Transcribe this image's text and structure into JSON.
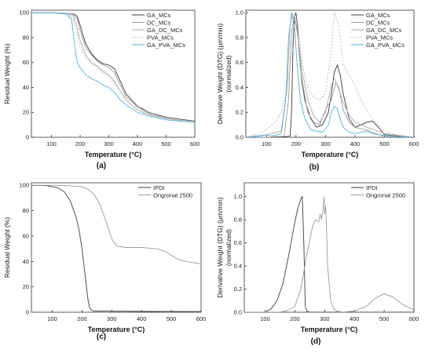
{
  "chart_data": [
    {
      "type": "line",
      "panel_label": "(a)",
      "xlabel": "Temperature (°C)",
      "ylabel": "Residual Weight (%)",
      "xlim": [
        30,
        600
      ],
      "ylim": [
        0,
        102
      ],
      "xticks": [
        100,
        200,
        300,
        400,
        500,
        600
      ],
      "yticks": [
        0,
        20,
        40,
        60,
        80,
        100
      ],
      "legend_position": "top-right",
      "series": [
        {
          "name": "GA_MCs",
          "color": "#3c3c3c",
          "dash": "",
          "x": [
            30,
            100,
            150,
            180,
            190,
            200,
            210,
            220,
            240,
            260,
            280,
            300,
            320,
            340,
            360,
            400,
            440,
            500,
            600
          ],
          "y": [
            100,
            100,
            99.5,
            99,
            97,
            90,
            82,
            75,
            67,
            62,
            59,
            58,
            55,
            45,
            35,
            25,
            20,
            16,
            13
          ]
        },
        {
          "name": "DC_MCs",
          "color": "#9a9a9a",
          "dash": "",
          "x": [
            30,
            100,
            150,
            175,
            190,
            200,
            210,
            220,
            240,
            260,
            280,
            300,
            320,
            340,
            360,
            400,
            440,
            500,
            600
          ],
          "y": [
            100,
            100,
            99.5,
            99,
            95,
            86,
            79,
            72,
            66,
            61,
            58,
            56,
            52,
            42,
            33,
            24,
            19,
            15,
            12
          ]
        },
        {
          "name": "GA_DC_MCs",
          "color": "#aaaaaa",
          "dash": "",
          "x": [
            30,
            100,
            150,
            175,
            185,
            200,
            210,
            220,
            240,
            260,
            280,
            300,
            320,
            340,
            360,
            400,
            440,
            500,
            600
          ],
          "y": [
            100,
            100,
            99.5,
            98,
            92,
            78,
            72,
            66,
            60,
            57,
            53,
            50,
            45,
            37,
            30,
            22,
            18,
            15,
            12
          ]
        },
        {
          "name": "PVA_MCs",
          "color": "#b8b8b8",
          "dash": "2,2",
          "x": [
            30,
            100,
            150,
            170,
            180,
            190,
            200,
            210,
            220,
            240,
            260,
            280,
            300,
            320,
            340,
            380,
            420,
            500,
            600
          ],
          "y": [
            100,
            100,
            99,
            97,
            92,
            84,
            74,
            68,
            64,
            59,
            56,
            52,
            48,
            43,
            37,
            28,
            22,
            15,
            12
          ]
        },
        {
          "name": "GA_PVA_MCs",
          "color": "#5aaed6",
          "dash": "",
          "x": [
            30,
            100,
            150,
            170,
            180,
            190,
            200,
            210,
            220,
            240,
            260,
            280,
            300,
            320,
            340,
            360,
            400,
            440,
            500,
            600
          ],
          "y": [
            100,
            100,
            99,
            95,
            75,
            60,
            56,
            53,
            50,
            47,
            45,
            42,
            40,
            36,
            30,
            26,
            20,
            17,
            14,
            12
          ]
        }
      ]
    },
    {
      "type": "line",
      "panel_label": "(b)",
      "xlabel": "Temperature (°C)",
      "ylabel": "Derivative Weight (DTG) (μm/min) (normalized)",
      "xlim": [
        30,
        600
      ],
      "ylim": [
        0,
        1.02
      ],
      "xticks": [
        100,
        200,
        300,
        400,
        500,
        600
      ],
      "yticks": [
        0.0,
        0.2,
        0.4,
        0.6,
        0.8,
        1.0
      ],
      "legend_position": "top-right",
      "series": [
        {
          "name": "GA_MCs",
          "color": "#3c3c3c",
          "dash": "",
          "x": [
            30,
            150,
            180,
            185,
            190,
            195,
            200,
            205,
            210,
            220,
            230,
            250,
            270,
            290,
            310,
            320,
            330,
            340,
            350,
            360,
            380,
            400,
            420,
            440,
            460,
            480,
            500,
            600
          ],
          "y": [
            0,
            0,
            0.01,
            0.2,
            0.75,
            0.97,
            1.0,
            0.9,
            0.7,
            0.45,
            0.3,
            0.15,
            0.08,
            0.1,
            0.2,
            0.35,
            0.52,
            0.58,
            0.5,
            0.35,
            0.15,
            0.08,
            0.1,
            0.12,
            0.13,
            0.08,
            0.02,
            0
          ]
        },
        {
          "name": "DC_MCs",
          "color": "#9a9a9a",
          "dash": "",
          "x": [
            30,
            100,
            160,
            175,
            185,
            195,
            205,
            215,
            225,
            240,
            260,
            280,
            300,
            320,
            335,
            345,
            360,
            380,
            400,
            440,
            480,
            600
          ],
          "y": [
            0,
            0,
            0.01,
            0.3,
            0.85,
            0.98,
            0.85,
            0.55,
            0.4,
            0.2,
            0.12,
            0.1,
            0.22,
            0.3,
            0.44,
            0.4,
            0.22,
            0.12,
            0.08,
            0.06,
            0.02,
            0
          ]
        },
        {
          "name": "GA_DC_MCs",
          "color": "#aaaaaa",
          "dash": "",
          "x": [
            30,
            100,
            150,
            170,
            180,
            185,
            190,
            200,
            210,
            220,
            240,
            260,
            280,
            300,
            320,
            330,
            340,
            360,
            380,
            400,
            440,
            500,
            600
          ],
          "y": [
            0,
            0.02,
            0.05,
            0.4,
            0.9,
            1.0,
            0.97,
            0.9,
            0.75,
            0.55,
            0.3,
            0.17,
            0.12,
            0.2,
            0.42,
            0.47,
            0.42,
            0.28,
            0.18,
            0.12,
            0.08,
            0.03,
            0
          ]
        },
        {
          "name": "PVA_MCs",
          "color": "#b8b8b8",
          "dash": "2,2",
          "x": [
            30,
            60,
            90,
            110,
            130,
            150,
            170,
            185,
            200,
            210,
            220,
            240,
            260,
            280,
            300,
            320,
            330,
            345,
            360,
            380,
            400,
            420,
            440,
            460,
            480,
            500,
            540,
            600
          ],
          "y": [
            0,
            0.02,
            0.05,
            0.08,
            0.12,
            0.2,
            0.4,
            0.65,
            0.82,
            0.85,
            0.6,
            0.4,
            0.32,
            0.3,
            0.35,
            0.7,
            1.0,
            0.9,
            0.58,
            0.5,
            0.42,
            0.3,
            0.22,
            0.15,
            0.1,
            0.05,
            0.02,
            0
          ]
        },
        {
          "name": "GA_PVA_MCs",
          "color": "#5aaed6",
          "dash": "",
          "x": [
            30,
            80,
            100,
            120,
            150,
            165,
            175,
            185,
            195,
            205,
            215,
            230,
            250,
            270,
            290,
            310,
            320,
            330,
            340,
            350,
            360,
            380,
            400,
            420,
            440,
            460,
            500,
            600
          ],
          "y": [
            0,
            0.01,
            0.02,
            0.01,
            0.03,
            0.3,
            0.8,
            0.99,
            0.88,
            0.55,
            0.3,
            0.15,
            0.06,
            0.05,
            0.04,
            0.1,
            0.2,
            0.25,
            0.23,
            0.15,
            0.08,
            0.04,
            0.03,
            0.04,
            0.05,
            0.03,
            0.01,
            0
          ]
        }
      ]
    },
    {
      "type": "line",
      "panel_label": "(c)",
      "xlabel": "Temperature (°C)",
      "ylabel": "Residual Weight (%)",
      "xlim": [
        30,
        600
      ],
      "ylim": [
        0,
        102
      ],
      "xticks": [
        100,
        200,
        300,
        400,
        500,
        600
      ],
      "yticks": [
        0,
        20,
        40,
        60,
        80,
        100
      ],
      "legend_position": "top-right",
      "series": [
        {
          "name": "IPDI",
          "color": "#3c3c3c",
          "dash": "",
          "x": [
            30,
            80,
            100,
            120,
            140,
            160,
            180,
            190,
            200,
            210,
            215,
            220,
            225,
            230,
            240,
            260,
            300,
            400,
            600
          ],
          "y": [
            100,
            99.8,
            99,
            98,
            95,
            88,
            75,
            65,
            50,
            30,
            20,
            10,
            4,
            2,
            1,
            1,
            0.8,
            0.6,
            0.5
          ]
        },
        {
          "name": "Ongronat 2500",
          "color": "#9a9a9a",
          "dash": "",
          "x": [
            30,
            100,
            150,
            200,
            220,
            240,
            260,
            280,
            290,
            300,
            310,
            320,
            350,
            400,
            450,
            480,
            500,
            520,
            550,
            600
          ],
          "y": [
            100,
            100,
            99.8,
            99,
            97,
            93,
            85,
            72,
            65,
            58,
            54,
            52,
            51,
            51,
            50,
            48,
            45,
            42,
            40,
            38
          ]
        }
      ]
    },
    {
      "type": "line",
      "panel_label": "(d)",
      "xlabel": "Temperature (°C)",
      "ylabel": "Derivative Weight (DTG) (μm/min) (normalized)",
      "xlim": [
        30,
        600
      ],
      "ylim": [
        0,
        1.12
      ],
      "xticks": [
        100,
        200,
        300,
        400,
        500,
        600
      ],
      "yticks": [
        0.0,
        0.2,
        0.4,
        0.6,
        0.8,
        1.0
      ],
      "legend_position": "top-right",
      "series": [
        {
          "name": "IPDI",
          "color": "#3c3c3c",
          "dash": "",
          "x": [
            30,
            100,
            120,
            140,
            160,
            180,
            200,
            210,
            220,
            225,
            230,
            235,
            240,
            250,
            300,
            600
          ],
          "y": [
            0,
            0,
            0.03,
            0.1,
            0.25,
            0.5,
            0.78,
            0.9,
            0.98,
            1.0,
            0.6,
            0.05,
            0.01,
            0,
            0,
            0
          ]
        },
        {
          "name": "Ongronat 2500",
          "color": "#9a9a9a",
          "dash": "",
          "x": [
            30,
            150,
            180,
            200,
            220,
            240,
            260,
            270,
            280,
            285,
            290,
            295,
            298,
            300,
            303,
            306,
            310,
            320,
            330,
            340,
            360,
            400,
            440,
            470,
            500,
            530,
            560,
            600
          ],
          "y": [
            0,
            0,
            0.02,
            0.05,
            0.2,
            0.5,
            0.75,
            0.8,
            0.78,
            0.85,
            0.8,
            0.9,
            1.0,
            0.85,
            0.92,
            0.75,
            0.4,
            0.1,
            0.03,
            0.01,
            0,
            0.01,
            0.05,
            0.12,
            0.16,
            0.13,
            0.07,
            0.02
          ]
        }
      ]
    }
  ]
}
